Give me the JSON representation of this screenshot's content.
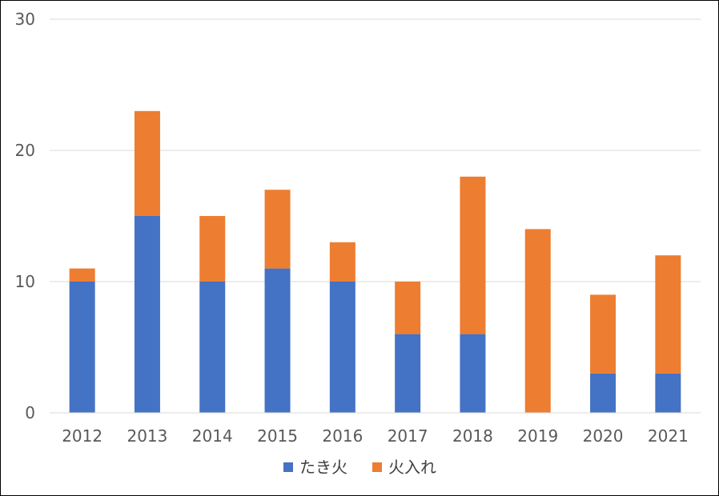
{
  "chart_data": {
    "type": "bar",
    "stacked": true,
    "categories": [
      "2012",
      "2013",
      "2014",
      "2015",
      "2016",
      "2017",
      "2018",
      "2019",
      "2020",
      "2021"
    ],
    "series": [
      {
        "name": "たき火",
        "color": "#4472C4",
        "values": [
          10,
          15,
          10,
          11,
          10,
          6,
          6,
          0,
          3,
          3
        ]
      },
      {
        "name": "火入れ",
        "color": "#ED7D31",
        "values": [
          1,
          8,
          5,
          6,
          3,
          4,
          12,
          14,
          6,
          9
        ]
      }
    ],
    "ylim": [
      0,
      30
    ],
    "yticks": [
      0,
      10,
      20,
      30
    ],
    "grid": true,
    "legend_position": "bottom",
    "title": "",
    "xlabel": "",
    "ylabel": ""
  }
}
